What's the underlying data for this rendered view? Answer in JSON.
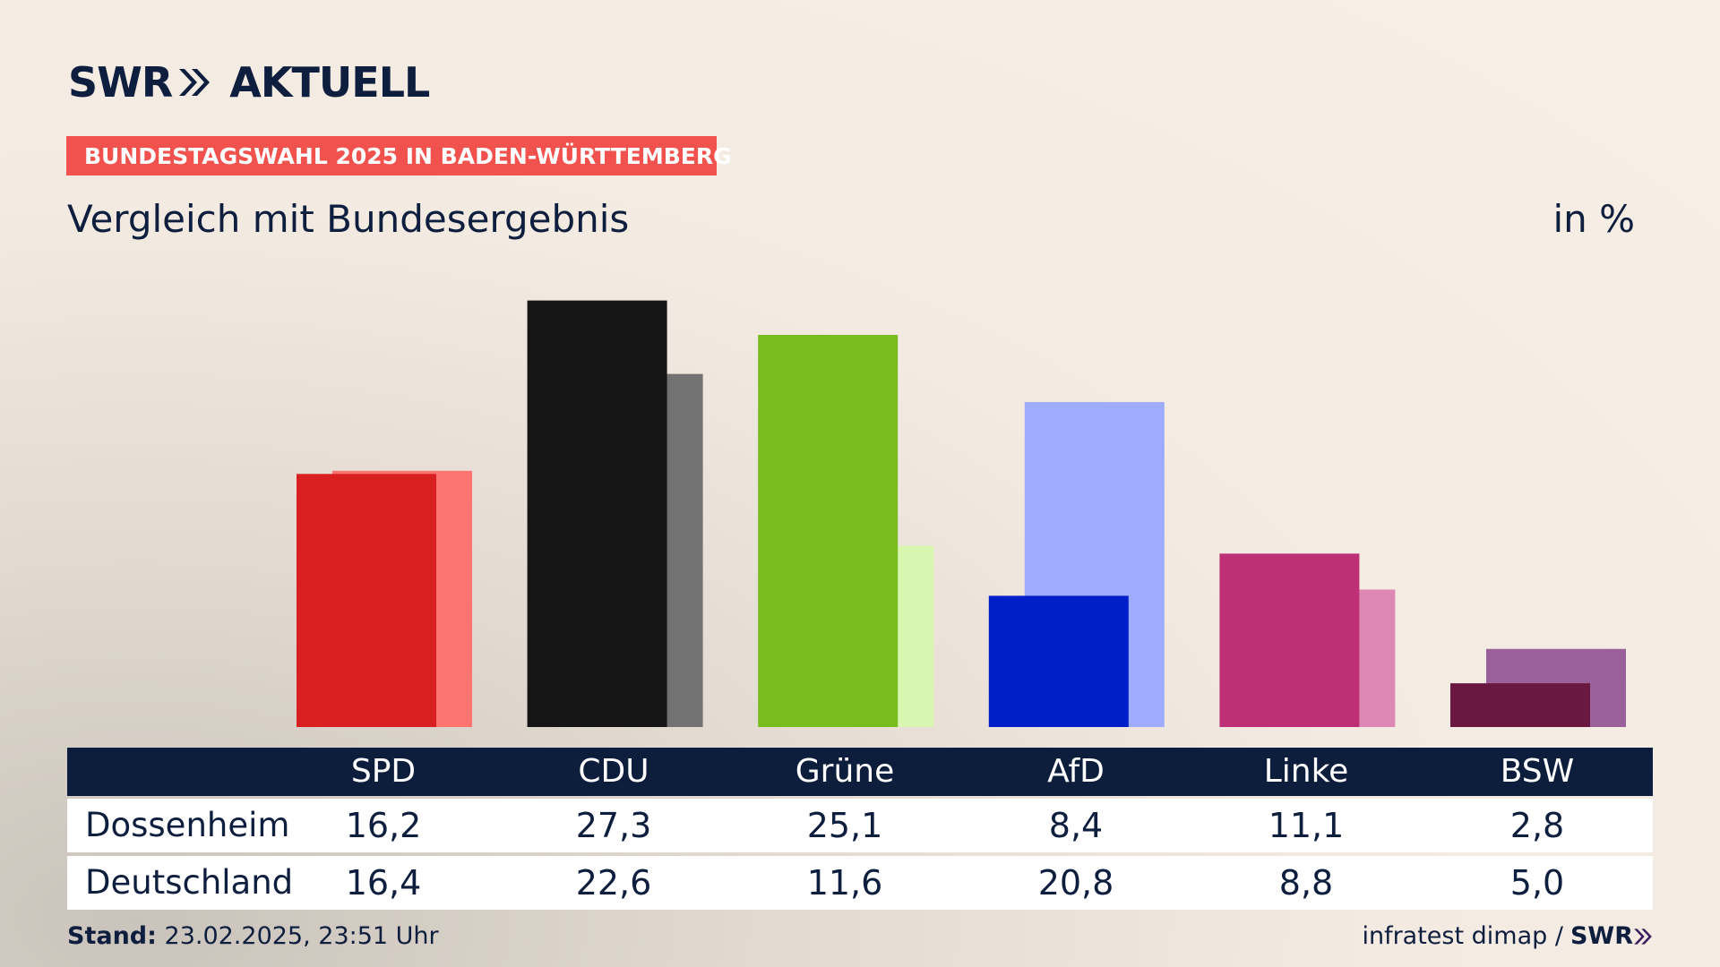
{
  "brand": {
    "logo_part1": "SWR",
    "logo_part2": "AKTUELL",
    "footer_logo": "SWR"
  },
  "header": {
    "tag": "BUNDESTAGSWAHL 2025 IN BADEN-WÜRTTEMBERG",
    "subtitle": "Vergleich mit Bundesergebnis",
    "unit": "in %",
    "tag_color": "#f2524d"
  },
  "table": {
    "parties": [
      "SPD",
      "CDU",
      "Grüne",
      "AfD",
      "Linke",
      "BSW"
    ],
    "rows": [
      {
        "label": "Dossenheim",
        "values": [
          "16,2",
          "27,3",
          "25,1",
          "8,4",
          "11,1",
          "2,8"
        ]
      },
      {
        "label": "Deutschland",
        "values": [
          "16,4",
          "22,6",
          "11,6",
          "20,8",
          "8,8",
          "5,0"
        ]
      }
    ]
  },
  "footer": {
    "stand_label": "Stand:",
    "stand_value": "23.02.2025, 23:51 Uhr",
    "source": "infratest dimap /"
  },
  "chart_data": {
    "type": "bar",
    "categories": [
      "SPD",
      "CDU",
      "Grüne",
      "AfD",
      "Linke",
      "BSW"
    ],
    "series": [
      {
        "name": "Dossenheim",
        "values": [
          16.2,
          27.3,
          25.1,
          8.4,
          11.1,
          2.8
        ],
        "colors": [
          "#d7201f",
          "#151515",
          "#78bc1e",
          "#001fc8",
          "#bd3075",
          "#6b1840"
        ]
      },
      {
        "name": "Deutschland",
        "values": [
          16.4,
          22.6,
          11.6,
          20.8,
          8.8,
          5.0
        ],
        "colors": [
          "#fe7470",
          "#737272",
          "#d9f6b1",
          "#9eabff",
          "#de88b5",
          "#9a609a"
        ]
      }
    ],
    "ylim": [
      0,
      29
    ]
  }
}
